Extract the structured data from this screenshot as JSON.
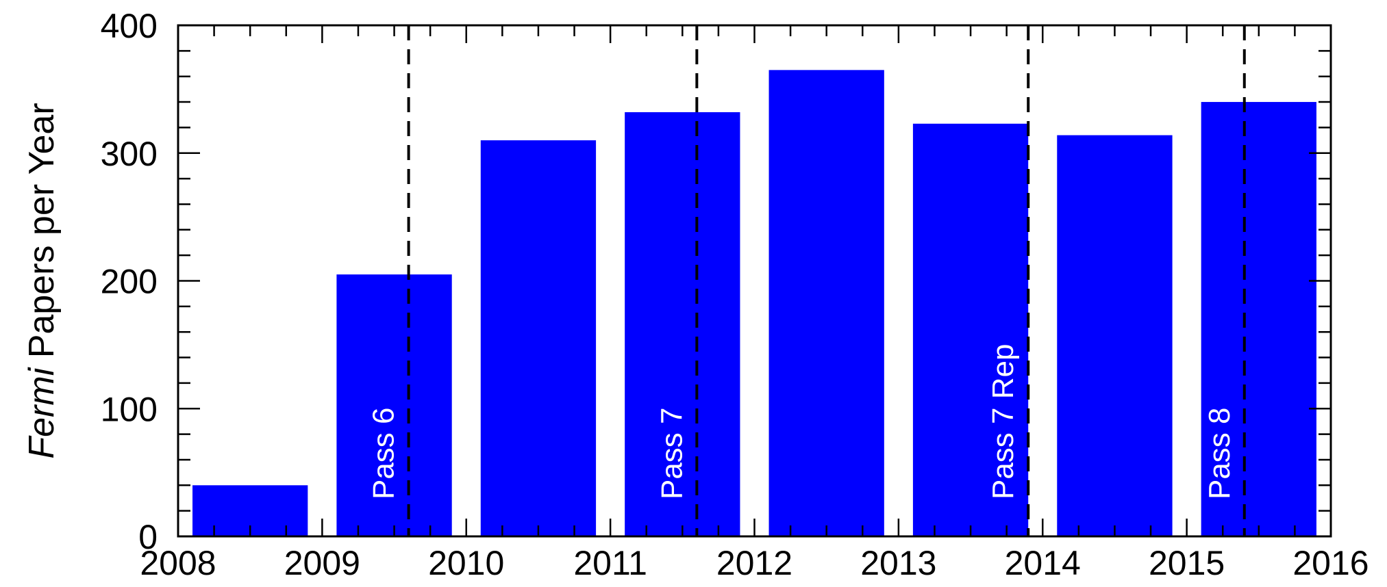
{
  "chart_data": {
    "type": "bar",
    "ylabel_italic": "Fermi",
    "ylabel": "Papers per Year",
    "xlabel": "",
    "xlim": [
      2008,
      2016
    ],
    "ylim": [
      0,
      400
    ],
    "x_ticks": [
      "2008",
      "2009",
      "2010",
      "2011",
      "2012",
      "2013",
      "2014",
      "2015",
      "2016"
    ],
    "y_ticks": [
      "0",
      "100",
      "200",
      "300",
      "400"
    ],
    "bar_color": "#0000ff",
    "bars": [
      {
        "year": 2008,
        "value": 40
      },
      {
        "year": 2009,
        "value": 205
      },
      {
        "year": 2010,
        "value": 310
      },
      {
        "year": 2011,
        "value": 332
      },
      {
        "year": 2012,
        "value": 365
      },
      {
        "year": 2013,
        "value": 323
      },
      {
        "year": 2014,
        "value": 314
      },
      {
        "year": 2015,
        "value": 340
      }
    ],
    "annotations": [
      {
        "label": "Pass 6",
        "x": 2009.6
      },
      {
        "label": "Pass 7",
        "x": 2011.6
      },
      {
        "label": "Pass 7 Rep",
        "x": 2013.9
      },
      {
        "label": "Pass 8",
        "x": 2015.4
      }
    ],
    "grid": false,
    "legend": "none"
  }
}
